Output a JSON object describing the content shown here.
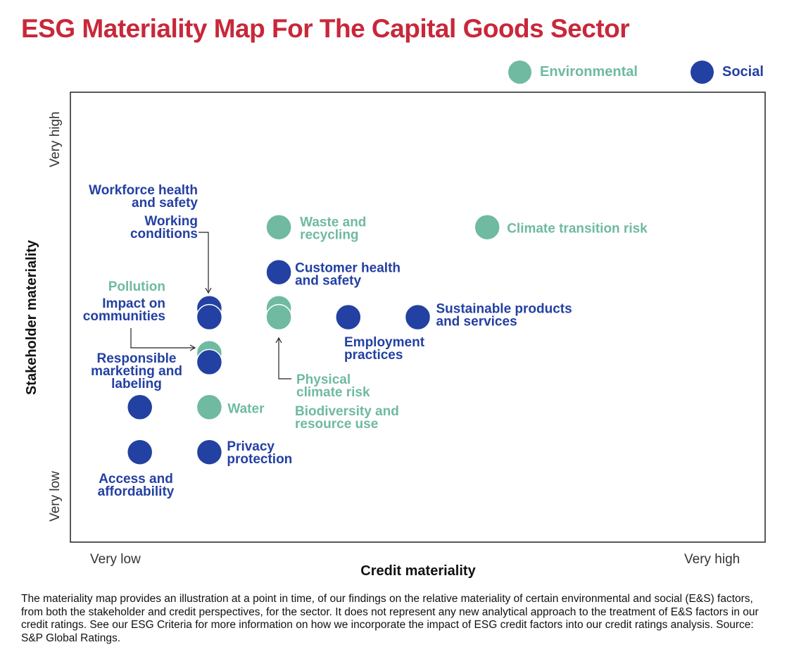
{
  "colors": {
    "title": "#c8283a",
    "environmental": "#6fbaa1",
    "social": "#2340a3",
    "axis": "#111111"
  },
  "chart_data": {
    "type": "scatter",
    "title": "ESG Materiality Map For The Capital Goods Sector",
    "xlabel": "Credit materiality",
    "ylabel": "Stakeholder materiality",
    "x_tick_labels": {
      "low": "Very low",
      "high": "Very high"
    },
    "y_tick_labels": {
      "low": "Very low",
      "high": "Very high"
    },
    "xlim": [
      0,
      10
    ],
    "ylim": [
      0,
      10
    ],
    "grid": false,
    "legend": {
      "position": "top-right",
      "entries": [
        {
          "name": "Environmental",
          "category": "environmental"
        },
        {
          "name": "Social",
          "category": "social"
        }
      ]
    },
    "points": [
      {
        "label": "Climate transition risk",
        "category": "environmental",
        "x": 6,
        "y": 7
      },
      {
        "label": "Waste and recycling",
        "category": "environmental",
        "x": 3,
        "y": 7
      },
      {
        "label": "Customer health and safety",
        "category": "social",
        "x": 3,
        "y": 6
      },
      {
        "label": "Workforce health and safety",
        "category": "social",
        "x": 2,
        "y": 5.2
      },
      {
        "label": "Working conditions",
        "category": "social",
        "x": 2,
        "y": 5
      },
      {
        "label": "Biodiversity and resource use",
        "category": "environmental",
        "x": 3,
        "y": 5.2
      },
      {
        "label": "Physical climate risk",
        "category": "environmental",
        "x": 3,
        "y": 5
      },
      {
        "label": "Employment practices",
        "category": "social",
        "x": 4,
        "y": 5
      },
      {
        "label": "Sustainable products and services",
        "category": "social",
        "x": 5,
        "y": 5
      },
      {
        "label": "Pollution",
        "category": "environmental",
        "x": 2,
        "y": 4.2
      },
      {
        "label": "Impact on communities",
        "category": "social",
        "x": 2,
        "y": 4
      },
      {
        "label": "Responsible marketing and labeling",
        "category": "social",
        "x": 1,
        "y": 3
      },
      {
        "label": "Water",
        "category": "environmental",
        "x": 2,
        "y": 3
      },
      {
        "label": "Access and affordability",
        "category": "social",
        "x": 1,
        "y": 2
      },
      {
        "label": "Privacy protection",
        "category": "social",
        "x": 2,
        "y": 2
      }
    ]
  },
  "footnote": "The materiality map provides an illustration at a point in time, of our findings on the relative materiality of certain environmental and social (E&S) factors, from both the stakeholder and credit perspectives, for the sector. It does not represent any new analytical approach to the treatment of E&S factors in our credit ratings. See our ESG Criteria for more information on how we incorporate the impact of ESG credit factors into our credit ratings analysis. Source: S&P Global Ratings."
}
